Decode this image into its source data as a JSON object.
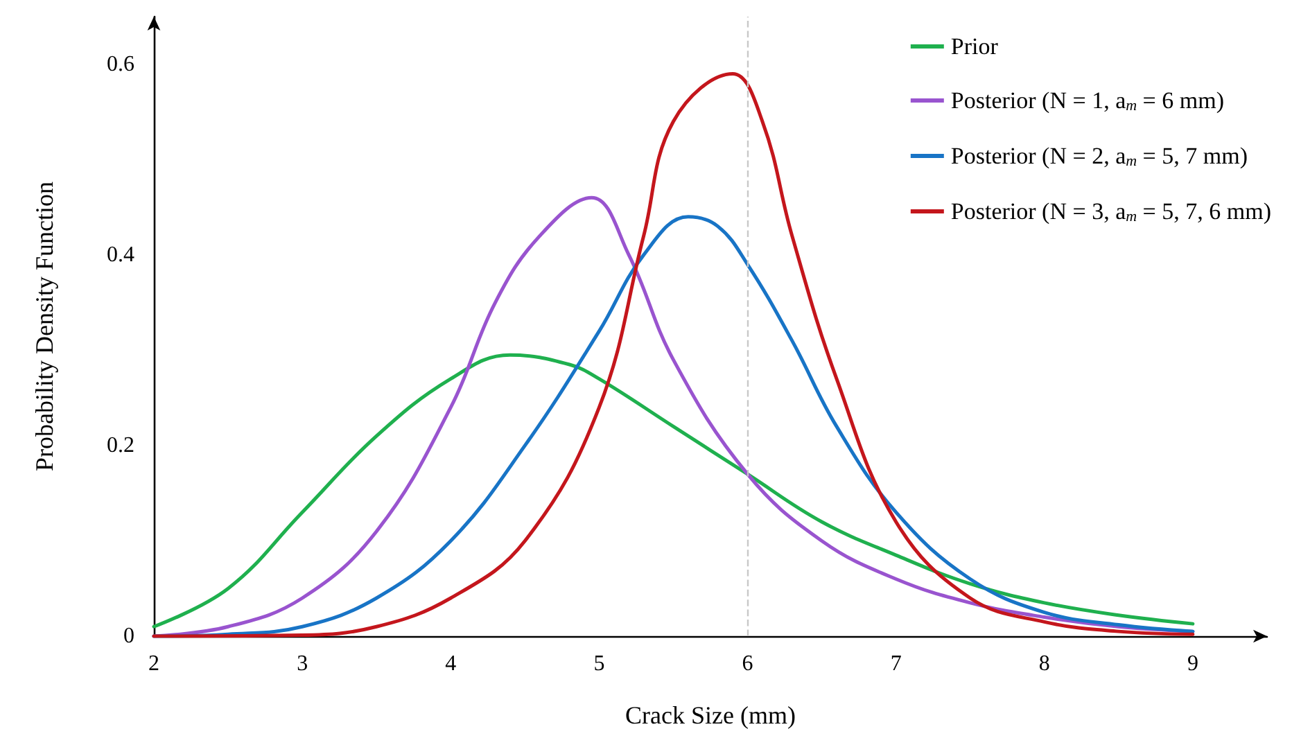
{
  "chart_data": {
    "type": "line",
    "xlabel": "Crack Size (mm)",
    "ylabel": "Probability Density Function",
    "xlim": [
      2,
      9.5
    ],
    "xticks": [
      2,
      3,
      4,
      5,
      6,
      7,
      8,
      9
    ],
    "ylim": [
      0,
      0.65
    ],
    "yticks": [
      0,
      0.2,
      0.4,
      0.6
    ],
    "grid": false,
    "legend": "top right",
    "marker": "none",
    "line_style": "solid",
    "ref_lines": [
      {
        "axis": "x",
        "value": 6,
        "label": null,
        "color": "#c8c8c8",
        "line_style": "dashed"
      }
    ],
    "series": [
      {
        "name": "Prior",
        "color": "#1fb04e",
        "x": [
          2,
          2.5,
          3,
          3.5,
          4,
          4.4,
          4.8,
          5,
          5.5,
          6,
          6.5,
          7,
          7.5,
          8,
          8.5,
          9
        ],
        "values": [
          0.01,
          0.05,
          0.13,
          0.21,
          0.27,
          0.295,
          0.285,
          0.27,
          0.22,
          0.17,
          0.12,
          0.085,
          0.055,
          0.035,
          0.022,
          0.013
        ]
      },
      {
        "name": "Posterior (N = 1, a$_{m}$ = 6 mm)",
        "color": "#9954cf",
        "x": [
          2,
          2.5,
          3,
          3.5,
          4,
          4.3,
          4.6,
          4.95,
          5.2,
          5.5,
          6,
          6.5,
          7,
          7.5,
          8,
          8.5,
          9
        ],
        "values": [
          0,
          0.01,
          0.04,
          0.11,
          0.24,
          0.35,
          0.42,
          0.46,
          0.4,
          0.29,
          0.17,
          0.1,
          0.06,
          0.035,
          0.02,
          0.01,
          0.005
        ]
      },
      {
        "name": "Posterior (N = 2, a$_{m}$ = 5, 7 mm)",
        "color": "#1874c6",
        "x": [
          2,
          2.5,
          3,
          3.5,
          4,
          4.5,
          5,
          5.3,
          5.6,
          5.8,
          6,
          6.3,
          6.6,
          7,
          7.5,
          8,
          8.5,
          9
        ],
        "values": [
          0,
          0.002,
          0.01,
          0.04,
          0.1,
          0.2,
          0.32,
          0.4,
          0.44,
          0.43,
          0.39,
          0.31,
          0.22,
          0.13,
          0.06,
          0.025,
          0.012,
          0.005
        ]
      },
      {
        "name": "Posterior (N = 3, a$_{m}$ = 5, 7, 6 mm)",
        "color": "#c4161c",
        "x": [
          2,
          3,
          3.5,
          4,
          4.5,
          5,
          5.3,
          5.5,
          5.9,
          6.1,
          6.3,
          6.6,
          7,
          7.5,
          8,
          8.5,
          9
        ],
        "values": [
          0,
          0.001,
          0.01,
          0.04,
          0.1,
          0.24,
          0.42,
          0.54,
          0.59,
          0.54,
          0.42,
          0.27,
          0.12,
          0.04,
          0.015,
          0.005,
          0.002
        ]
      }
    ]
  }
}
